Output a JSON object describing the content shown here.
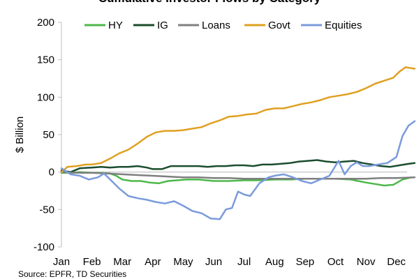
{
  "chart_data": {
    "type": "line",
    "title": "Cumulative Investor Flows by Category",
    "ylabel": "$ Billion",
    "xlabel": "",
    "ylim": [
      -100,
      200
    ],
    "yticks": [
      -100,
      -50,
      0,
      50,
      100,
      150,
      200
    ],
    "x_ticks": [
      "Jan",
      "Feb",
      "Mar",
      "Apr",
      "May",
      "Jun",
      "Jul",
      "Aug",
      "Sep",
      "Oct",
      "Nov",
      "Dec"
    ],
    "legend_position": "top",
    "grid": false,
    "series": [
      {
        "name": "HY",
        "color": "#4cb848",
        "width": 2.5,
        "x": [
          0,
          0.3,
          0.6,
          1,
          1.3,
          1.6,
          1.8,
          2,
          2.3,
          2.6,
          2.9,
          3.2,
          3.5,
          3.8,
          4.1,
          4.5,
          5,
          5.5,
          6,
          6.5,
          7,
          7.5,
          8,
          8.5,
          9,
          9.5,
          10,
          10.3,
          10.6,
          10.9,
          11.2,
          11.5
        ],
        "values": [
          -1,
          -1,
          0,
          -1,
          -1,
          -2,
          -5,
          -10,
          -12,
          -12,
          -14,
          -15,
          -12,
          -11,
          -10,
          -10,
          -12,
          -12,
          -11,
          -11,
          -10,
          -10,
          -9,
          -9,
          -9,
          -10,
          -14,
          -16,
          -18,
          -17,
          -10,
          -7
        ]
      },
      {
        "name": "IG",
        "color": "#1b4d2e",
        "width": 2.5,
        "x": [
          0,
          0.3,
          0.6,
          1,
          1.3,
          1.6,
          1.9,
          2.2,
          2.5,
          2.8,
          3,
          3.3,
          3.6,
          3.9,
          4.2,
          4.5,
          4.8,
          5.1,
          5.4,
          5.7,
          6,
          6.3,
          6.6,
          6.9,
          7.2,
          7.5,
          7.8,
          8.1,
          8.4,
          8.7,
          9,
          9.3,
          9.6,
          9.9,
          10.2,
          10.5,
          10.8,
          11.1,
          11.4,
          11.6
        ],
        "values": [
          2,
          0,
          5,
          6,
          7,
          6,
          7,
          7,
          8,
          6,
          4,
          4,
          8,
          8,
          8,
          8,
          7,
          8,
          8,
          9,
          9,
          8,
          10,
          10,
          11,
          12,
          14,
          15,
          16,
          14,
          13,
          14,
          15,
          12,
          10,
          8,
          7,
          9,
          11,
          12
        ]
      },
      {
        "name": "Loans",
        "color": "#7f7f7f",
        "width": 2.5,
        "x": [
          0,
          0.5,
          1,
          1.5,
          2,
          2.5,
          3,
          3.5,
          4,
          4.5,
          5,
          5.5,
          6,
          6.5,
          7,
          7.5,
          8,
          8.5,
          9,
          9.5,
          10,
          10.5,
          11,
          11.6
        ],
        "values": [
          0,
          -1,
          -1,
          -2,
          -3,
          -4,
          -5,
          -6,
          -7,
          -7,
          -8,
          -8,
          -9,
          -9,
          -9,
          -9,
          -9,
          -9,
          -9,
          -9,
          -9,
          -8,
          -8,
          -7
        ]
      },
      {
        "name": "Govt",
        "color": "#e0a020",
        "width": 2.5,
        "x": [
          0,
          0.2,
          0.5,
          0.8,
          1,
          1.3,
          1.6,
          1.9,
          2.2,
          2.5,
          2.8,
          3.1,
          3.4,
          3.7,
          4,
          4.3,
          4.6,
          4.9,
          5.2,
          5.5,
          5.8,
          6.1,
          6.4,
          6.7,
          7,
          7.3,
          7.6,
          7.9,
          8.2,
          8.5,
          8.8,
          9.1,
          9.4,
          9.7,
          10,
          10.3,
          10.6,
          10.9,
          11.1,
          11.3,
          11.6
        ],
        "values": [
          0,
          7,
          8,
          10,
          10,
          12,
          18,
          25,
          30,
          38,
          47,
          53,
          55,
          55,
          56,
          58,
          60,
          65,
          69,
          74,
          75,
          77,
          78,
          83,
          85,
          85,
          88,
          91,
          93,
          96,
          100,
          102,
          104,
          107,
          112,
          118,
          122,
          126,
          134,
          140,
          138
        ]
      },
      {
        "name": "Equities",
        "color": "#7a9bdc",
        "width": 2.5,
        "x": [
          0,
          0.3,
          0.6,
          0.9,
          1.2,
          1.4,
          1.6,
          1.9,
          2.2,
          2.5,
          2.8,
          3.1,
          3.4,
          3.7,
          4,
          4.3,
          4.6,
          4.9,
          5.2,
          5.4,
          5.6,
          5.8,
          6,
          6.2,
          6.5,
          6.8,
          7,
          7.3,
          7.6,
          7.9,
          8.2,
          8.5,
          8.8,
          9.1,
          9.3,
          9.5,
          9.7,
          9.9,
          10.1,
          10.4,
          10.7,
          11,
          11.2,
          11.4,
          11.6
        ],
        "values": [
          5,
          -3,
          -5,
          -10,
          -7,
          -2,
          -10,
          -22,
          -32,
          -35,
          -37,
          -40,
          -42,
          -39,
          -45,
          -52,
          -55,
          -62,
          -63,
          -50,
          -48,
          -26,
          -30,
          -32,
          -15,
          -7,
          -5,
          -3,
          -7,
          -12,
          -15,
          -10,
          -5,
          15,
          -3,
          8,
          13,
          8,
          8,
          10,
          12,
          20,
          48,
          62,
          68
        ]
      }
    ],
    "source": "Source: EPFR, TD Securities"
  }
}
